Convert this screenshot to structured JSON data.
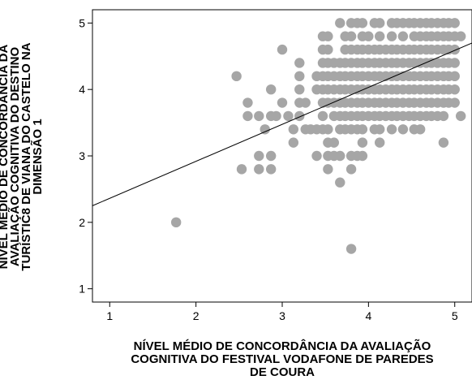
{
  "chart_data": {
    "type": "scatter",
    "title": "",
    "xlabel_lines": [
      "NÍVEL MÉDIO DE CONCORDÂNCIA DA AVALIAÇÃO",
      "COGNITIVA DO FESTIVAL VODAFONE DE PAREDES",
      "DE COURA"
    ],
    "ylabel_lines": [
      "NÍVEL MÉDIO DE CONCORDÂNCIA DA",
      "AVALIAÇÃO COGNITIVA DO DESTINO",
      "TURÍSTIC8 DE VIANA DO CASTELO NA",
      "DIMENSÃO 1"
    ],
    "xlim": [
      0.8,
      5.2
    ],
    "ylim": [
      0.8,
      5.2
    ],
    "xticks": [
      "1",
      "2",
      "3",
      "4",
      "5"
    ],
    "yticks": [
      "1",
      "2",
      "3",
      "4",
      "5"
    ],
    "grid": false,
    "colors": {
      "points": "#a6a6a6",
      "fit_line": "#000000",
      "axes": "#000000"
    },
    "fit_line": {
      "x": [
        0.8,
        5.2
      ],
      "y": [
        2.25,
        4.7
      ]
    },
    "point_rows": [
      {
        "y": 5.0,
        "x": [
          3.67,
          3.8,
          3.87,
          3.93,
          4.07,
          4.13,
          4.27,
          4.33,
          4.4,
          4.47,
          4.53,
          4.6,
          4.67,
          4.73,
          4.8,
          4.87,
          4.93,
          5.0
        ]
      },
      {
        "y": 4.8,
        "x": [
          3.47,
          3.53,
          3.73,
          3.8,
          3.93,
          4.0,
          4.13,
          4.27,
          4.4,
          4.53,
          4.6,
          4.67,
          4.73,
          4.8,
          4.87,
          4.93,
          5.0,
          5.07
        ]
      },
      {
        "y": 4.6,
        "x": [
          3.0,
          3.47,
          3.53,
          3.73,
          3.8,
          3.87,
          3.93,
          4.0,
          4.07,
          4.13,
          4.2,
          4.27,
          4.33,
          4.4,
          4.47,
          4.53,
          4.6,
          4.67,
          4.73,
          4.8,
          4.87,
          4.93,
          5.0
        ]
      },
      {
        "y": 4.4,
        "x": [
          3.2,
          3.47,
          3.53,
          3.6,
          3.67,
          3.73,
          3.8,
          3.87,
          3.93,
          4.0,
          4.07,
          4.13,
          4.2,
          4.27,
          4.33,
          4.4,
          4.47,
          4.53,
          4.6,
          4.67,
          4.73,
          4.8,
          4.87,
          4.93,
          5.0
        ]
      },
      {
        "y": 4.2,
        "x": [
          2.47,
          3.2,
          3.4,
          3.47,
          3.53,
          3.6,
          3.67,
          3.73,
          3.8,
          3.87,
          3.93,
          4.0,
          4.07,
          4.13,
          4.2,
          4.27,
          4.33,
          4.4,
          4.47,
          4.53,
          4.6,
          4.67,
          4.73,
          4.8,
          4.87,
          4.93,
          5.0
        ]
      },
      {
        "y": 4.0,
        "x": [
          2.87,
          3.2,
          3.4,
          3.47,
          3.53,
          3.6,
          3.67,
          3.73,
          3.8,
          3.87,
          3.93,
          4.0,
          4.07,
          4.13,
          4.2,
          4.27,
          4.33,
          4.4,
          4.47,
          4.53,
          4.6,
          4.67,
          4.73,
          4.8,
          4.87,
          4.93,
          5.0
        ]
      },
      {
        "y": 3.8,
        "x": [
          2.6,
          3.0,
          3.2,
          3.27,
          3.47,
          3.53,
          3.6,
          3.67,
          3.73,
          3.8,
          3.87,
          3.93,
          4.0,
          4.07,
          4.13,
          4.2,
          4.27,
          4.33,
          4.4,
          4.47,
          4.53,
          4.6,
          4.67,
          4.73,
          4.8,
          4.87,
          4.93,
          5.0
        ]
      },
      {
        "y": 3.6,
        "x": [
          2.6,
          2.73,
          2.87,
          2.93,
          3.07,
          3.2,
          3.47,
          3.6,
          3.67,
          3.73,
          3.8,
          3.87,
          3.93,
          4.0,
          4.07,
          4.13,
          4.2,
          4.27,
          4.33,
          4.4,
          4.47,
          4.53,
          4.6,
          4.67,
          4.73,
          4.8,
          4.87,
          5.07
        ]
      },
      {
        "y": 3.4,
        "x": [
          2.8,
          3.13,
          3.27,
          3.33,
          3.4,
          3.47,
          3.53,
          3.67,
          3.73,
          3.8,
          3.87,
          3.93,
          4.07,
          4.13,
          4.27,
          4.4,
          4.53,
          4.6
        ]
      },
      {
        "y": 3.2,
        "x": [
          3.13,
          3.53,
          3.6,
          3.93,
          4.13,
          4.87
        ]
      },
      {
        "y": 3.0,
        "x": [
          2.73,
          2.87,
          3.4,
          3.53,
          3.6,
          3.67,
          3.8,
          3.87,
          3.93
        ]
      },
      {
        "y": 2.8,
        "x": [
          2.53,
          2.73,
          2.87,
          3.53,
          3.8
        ]
      },
      {
        "y": 2.6,
        "x": [
          3.67
        ]
      },
      {
        "y": 2.0,
        "x": [
          1.77
        ]
      },
      {
        "y": 1.6,
        "x": [
          3.8
        ]
      }
    ]
  }
}
